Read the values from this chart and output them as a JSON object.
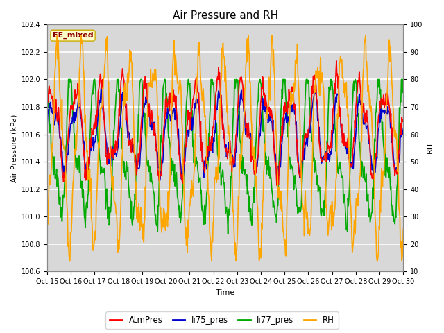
{
  "title": "Air Pressure and RH",
  "xlabel": "Time",
  "ylabel_left": "Air Pressure (kPa)",
  "ylabel_right": "RH",
  "ylim_left": [
    100.6,
    102.4
  ],
  "ylim_right": [
    10,
    100
  ],
  "yticks_left": [
    100.6,
    100.8,
    101.0,
    101.2,
    101.4,
    101.6,
    101.8,
    102.0,
    102.2,
    102.4
  ],
  "yticks_right": [
    10,
    20,
    30,
    40,
    50,
    60,
    70,
    80,
    90,
    100
  ],
  "xtick_labels": [
    "Oct 15",
    "Oct 16",
    "Oct 17",
    "Oct 18",
    "Oct 19",
    "Oct 20",
    "Oct 21",
    "Oct 22",
    "Oct 23",
    "Oct 24",
    "Oct 25",
    "Oct 26",
    "Oct 27",
    "Oct 28",
    "Oct 29",
    "Oct 30"
  ],
  "annotation_text": "EE_mixed",
  "annotation_color": "#8B0000",
  "annotation_bg": "#FFFFCC",
  "annotation_edge": "#CCAA00",
  "line_colors": {
    "AtmPres": "#FF0000",
    "li75_pres": "#0000CD",
    "li77_pres": "#00AA00",
    "RH": "#FFA500"
  },
  "line_widths": {
    "AtmPres": 1.2,
    "li75_pres": 1.2,
    "li77_pres": 1.2,
    "RH": 1.2
  },
  "bg_color": "#D8D8D8",
  "grid_color": "#FFFFFF",
  "title_fontsize": 11,
  "label_fontsize": 8,
  "tick_fontsize": 7
}
